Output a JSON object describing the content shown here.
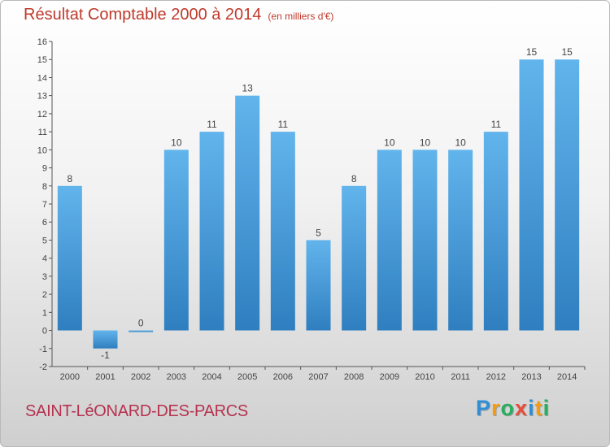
{
  "title": "Résultat Comptable 2000 à 2014",
  "unit_label": "(en milliers d'€)",
  "commune": "SAINT-LéONARD-DES-PARCS",
  "logo": {
    "text": "Proxiti",
    "letters": [
      {
        "ch": "P",
        "color": "#2f8fd6"
      },
      {
        "ch": "r",
        "color": "#f39c12"
      },
      {
        "ch": "o",
        "color": "#27ae60"
      },
      {
        "ch": "x",
        "color": "#e74c3c"
      },
      {
        "ch": "i",
        "color": "#2f8fd6"
      },
      {
        "ch": "t",
        "color": "#f39c12"
      },
      {
        "ch": "i",
        "color": "#27ae60"
      }
    ]
  },
  "colors": {
    "bar_light": "#62b4ec",
    "bar_dark": "#2f7fc0",
    "axis": "#555555",
    "title": "#c0392b"
  },
  "chart_data": {
    "type": "bar",
    "categories": [
      "2000",
      "2001",
      "2002",
      "2003",
      "2004",
      "2005",
      "2006",
      "2007",
      "2008",
      "2009",
      "2010",
      "2011",
      "2012",
      "2013",
      "2014"
    ],
    "values": [
      8,
      -1,
      0,
      10,
      11,
      13,
      11,
      5,
      8,
      10,
      10,
      10,
      11,
      15,
      15
    ],
    "value_labels": [
      "8",
      "-1",
      "0",
      "10",
      "11",
      "13",
      "11",
      "5",
      "8",
      "10",
      "10",
      "10",
      "11",
      "15",
      "15"
    ],
    "ylim": [
      -2,
      16
    ],
    "yticks": [
      "-2",
      "-1",
      "0",
      "1",
      "2",
      "3",
      "4",
      "5",
      "6",
      "7",
      "8",
      "9",
      "10",
      "11",
      "12",
      "13",
      "14",
      "15",
      "16"
    ],
    "grid": false,
    "legend": "none"
  }
}
